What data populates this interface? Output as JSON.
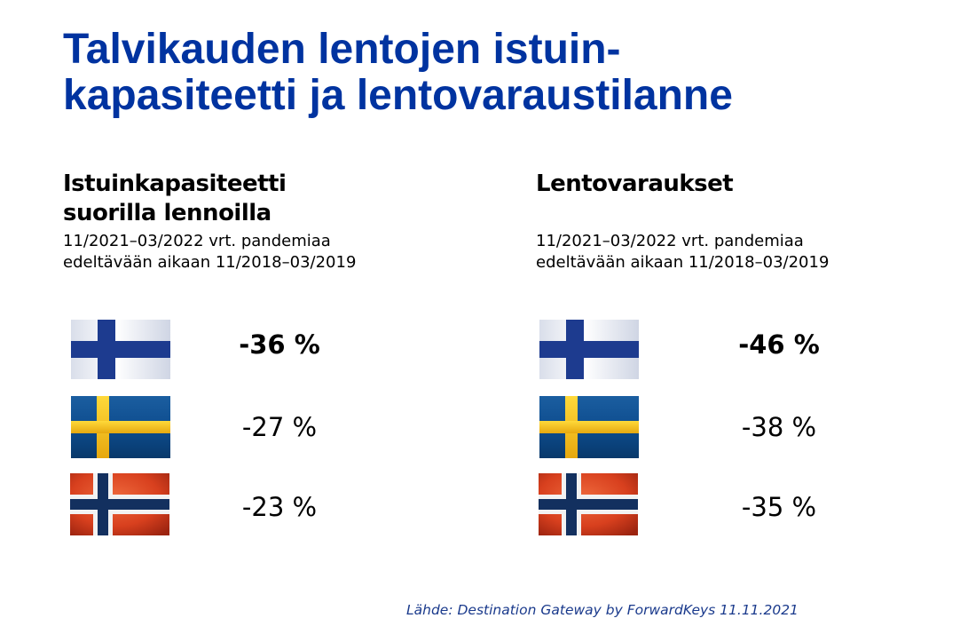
{
  "title": {
    "line1": "Talvikauden lentojen istuin-",
    "line2": "kapasiteetti ja lentovaraustilanne"
  },
  "panels": [
    {
      "heading_line1": "Istuinkapasiteetti",
      "heading_line2": "suorilla lennoilla",
      "sub_line1": "11/2021–03/2022 vrt. pandemiaa",
      "sub_line2": "edeltävään aikaan 11/2018–03/2019",
      "rows": [
        {
          "flag": "finland-flag",
          "value": "-36 %"
        },
        {
          "flag": "sweden-flag",
          "value": "-27 %"
        },
        {
          "flag": "norway-flag",
          "value": "-23 %"
        }
      ]
    },
    {
      "heading_line1": "Lentovaraukset",
      "heading_line2": "",
      "sub_line1": "11/2021–03/2022 vrt. pandemiaa",
      "sub_line2": "edeltävään aikaan 11/2018–03/2019",
      "rows": [
        {
          "flag": "finland-flag",
          "value": "-46 %"
        },
        {
          "flag": "sweden-flag",
          "value": "-38 %"
        },
        {
          "flag": "norway-flag",
          "value": "-35 %"
        }
      ]
    }
  ],
  "source": "Lähde: Destination Gateway by ForwardKeys 11.11.2021",
  "colors": {
    "title": "#0033a0",
    "source": "#1a3a8c",
    "finland_blue": "#1d3b8f",
    "sweden_blue": "#0d4f92",
    "sweden_yellow": "#f5c518",
    "norway_red": "#d8401e",
    "norway_blue": "#13305f"
  }
}
